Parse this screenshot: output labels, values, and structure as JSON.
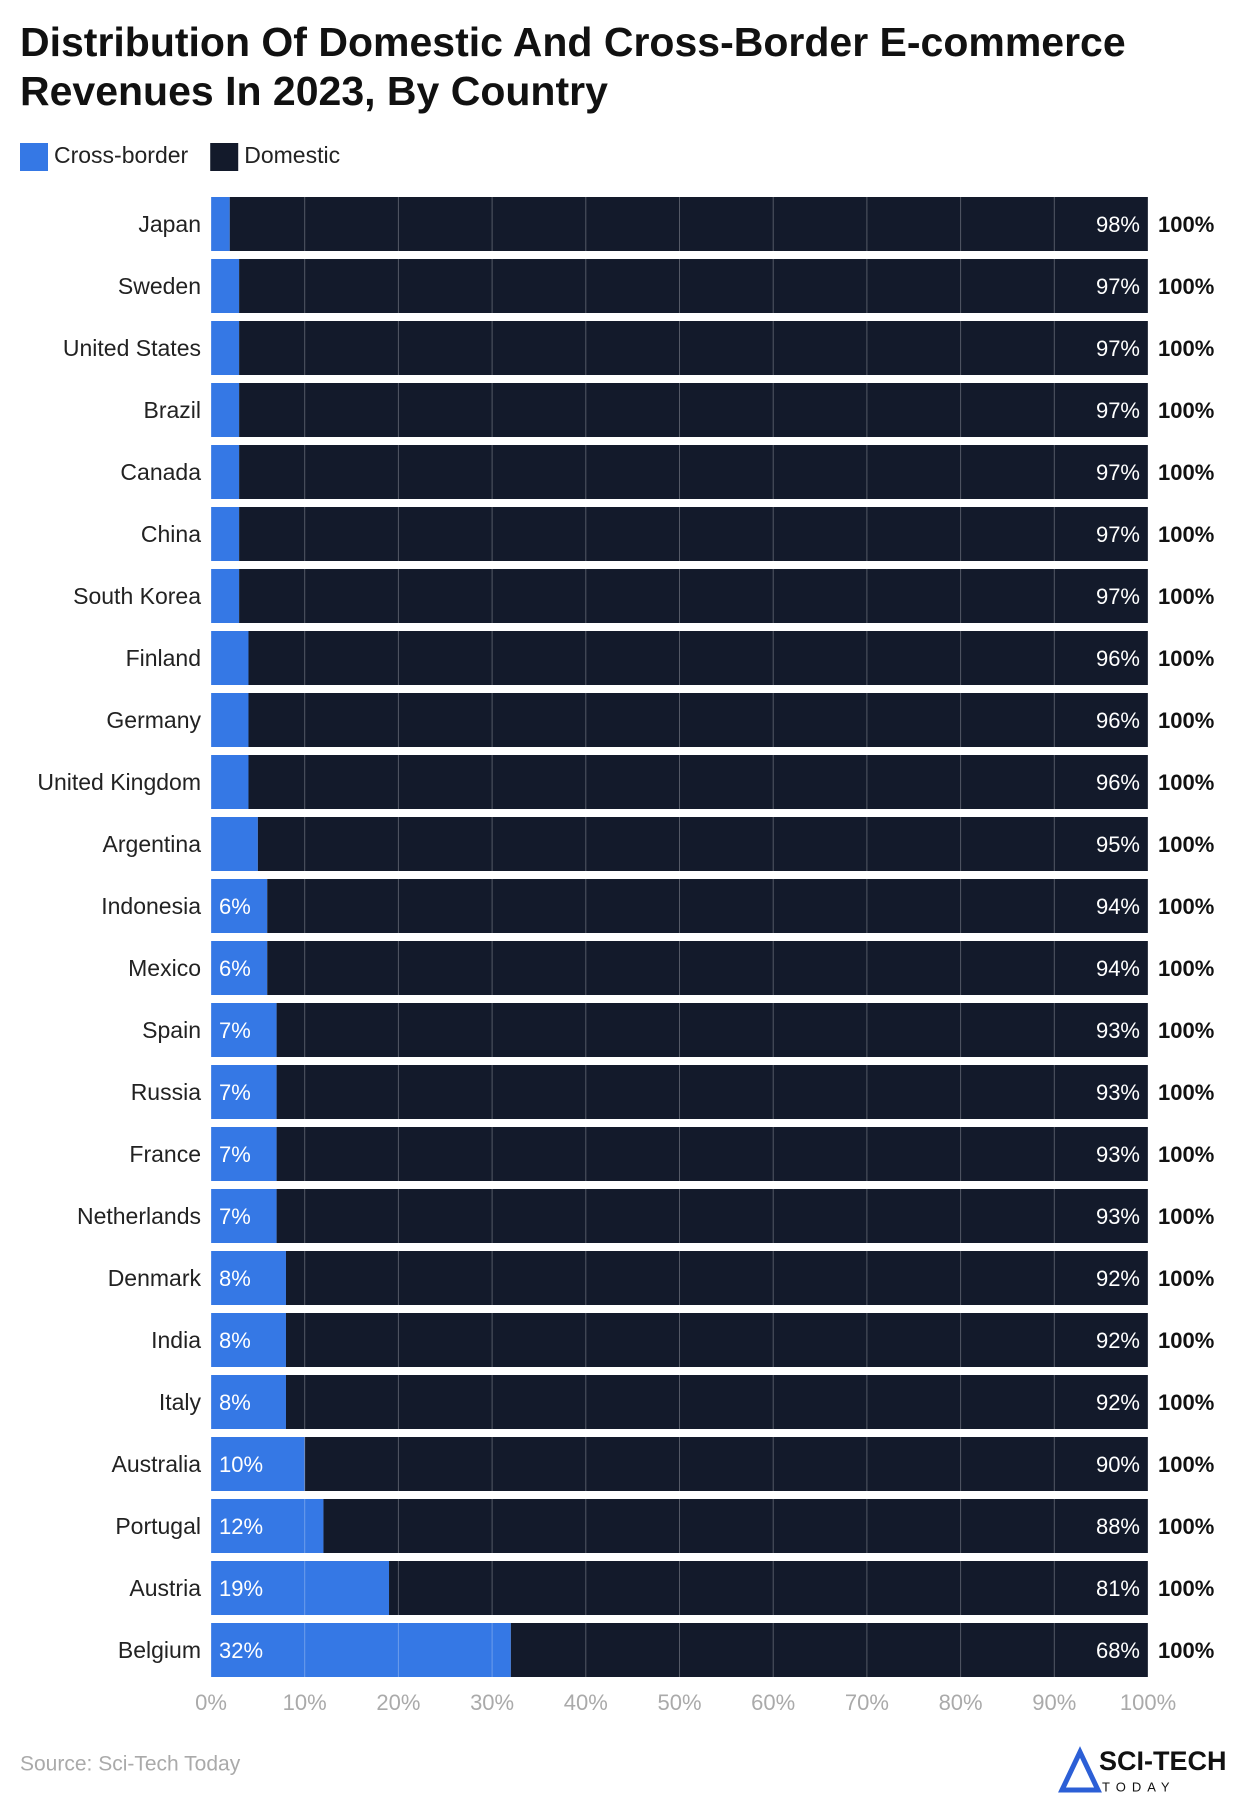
{
  "chart_data": {
    "type": "stacked_bar_horizontal",
    "title": "Distribution Of Domestic And Cross-Border E-commerce Revenues In 2023, By Country",
    "categories": [
      "Japan",
      "Sweden",
      "United States",
      "Brazil",
      "Canada",
      "China",
      "South Korea",
      "Finland",
      "Germany",
      "United Kingdom",
      "Argentina",
      "Indonesia",
      "Mexico",
      "Spain",
      "Russia",
      "France",
      "Netherlands",
      "Denmark",
      "India",
      "Italy",
      "Australia",
      "Portugal",
      "Austria",
      "Belgium"
    ],
    "series": [
      {
        "name": "Cross-border",
        "color": "#3578e5",
        "values": [
          2,
          3,
          3,
          3,
          3,
          3,
          3,
          4,
          4,
          4,
          5,
          6,
          6,
          7,
          7,
          7,
          7,
          8,
          8,
          8,
          10,
          12,
          19,
          32
        ],
        "value_labels": [
          null,
          null,
          null,
          null,
          null,
          null,
          null,
          null,
          null,
          null,
          null,
          "6%",
          "6%",
          "7%",
          "7%",
          "7%",
          "7%",
          "8%",
          "8%",
          "8%",
          "10%",
          "12%",
          "19%",
          "32%"
        ]
      },
      {
        "name": "Domestic",
        "color": "#131a2b",
        "values": [
          98,
          97,
          97,
          97,
          97,
          97,
          97,
          96,
          96,
          96,
          95,
          94,
          94,
          93,
          93,
          93,
          93,
          92,
          92,
          92,
          90,
          88,
          81,
          68
        ],
        "value_labels": [
          "98%",
          "97%",
          "97%",
          "97%",
          "97%",
          "97%",
          "97%",
          "96%",
          "96%",
          "96%",
          "95%",
          "94%",
          "94%",
          "93%",
          "93%",
          "93%",
          "93%",
          "92%",
          "92%",
          "92%",
          "90%",
          "88%",
          "81%",
          "68%"
        ]
      }
    ],
    "totals": [
      100,
      100,
      100,
      100,
      100,
      100,
      100,
      100,
      100,
      100,
      100,
      100,
      100,
      100,
      100,
      100,
      100,
      100,
      100,
      100,
      100,
      100,
      100,
      100
    ],
    "total_labels": [
      "100%",
      "100%",
      "100%",
      "100%",
      "100%",
      "100%",
      "100%",
      "100%",
      "100%",
      "100%",
      "100%",
      "100%",
      "100%",
      "100%",
      "100%",
      "100%",
      "100%",
      "100%",
      "100%",
      "100%",
      "100%",
      "100%",
      "100%",
      "100%"
    ],
    "xlim": [
      0,
      100
    ],
    "xticks": [
      {
        "value": 0,
        "label": "0%"
      },
      {
        "value": 10,
        "label": "10%"
      },
      {
        "value": 20,
        "label": "20%"
      },
      {
        "value": 30,
        "label": "30%"
      },
      {
        "value": 40,
        "label": "40%"
      },
      {
        "value": 50,
        "label": "50%"
      },
      {
        "value": 60,
        "label": "60%"
      },
      {
        "value": 70,
        "label": "70%"
      },
      {
        "value": 80,
        "label": "80%"
      },
      {
        "value": 90,
        "label": "90%"
      },
      {
        "value": 100,
        "label": "100%"
      }
    ],
    "grid": true,
    "legend": "top-left",
    "source": "Source: Sci-Tech Today",
    "logo": {
      "name": "SCI-TECH",
      "tagline": "TODAY"
    }
  }
}
